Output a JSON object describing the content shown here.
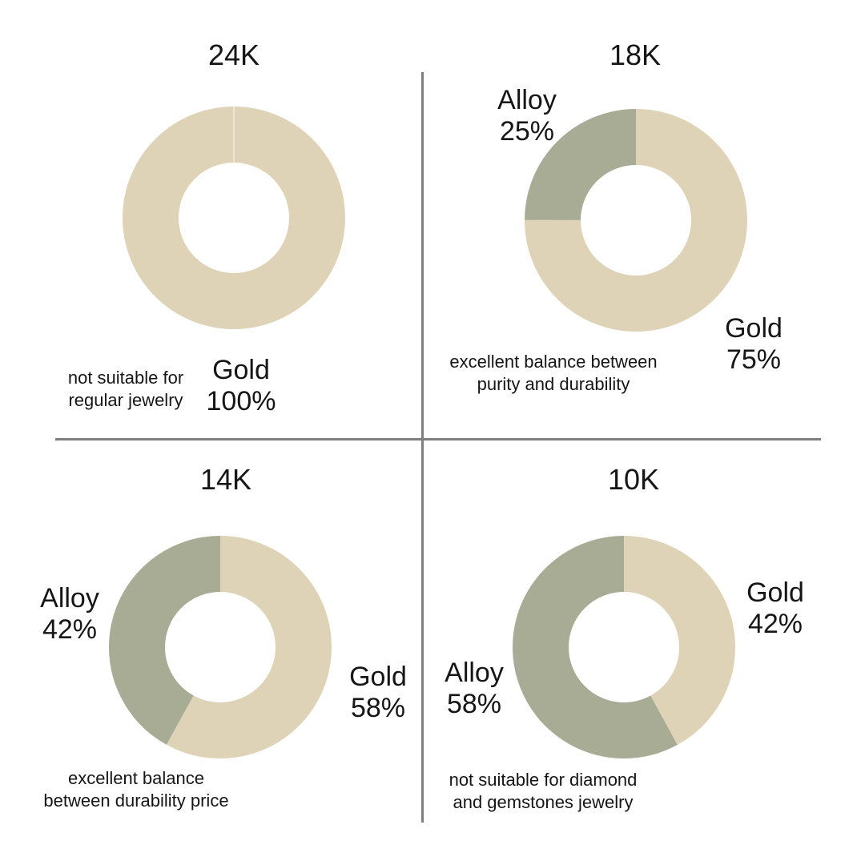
{
  "colors": {
    "gold_segment": "#DED3B7",
    "alloy_segment": "#A8AC94",
    "divider": "#7F7F7F",
    "text": "#161616",
    "background": "#FFFFFF"
  },
  "chart_data": [
    {
      "type": "pie",
      "subtype": "donut",
      "title": "24K",
      "slices": [
        {
          "label": "Gold",
          "value": 100,
          "display": "100%",
          "color": "#DED3B7"
        }
      ],
      "note_lines": [
        "not suitable for",
        "regular jewelry"
      ],
      "legend_position": "around-chart",
      "start_angle_deg": 0,
      "direction": "clockwise"
    },
    {
      "type": "pie",
      "subtype": "donut",
      "title": "18K",
      "slices": [
        {
          "label": "Gold",
          "value": 75,
          "display": "75%",
          "color": "#DED3B7"
        },
        {
          "label": "Alloy",
          "value": 25,
          "display": "25%",
          "color": "#A8AC94"
        }
      ],
      "note_lines": [
        "excellent balance between",
        "purity and durability"
      ],
      "legend_position": "around-chart",
      "start_angle_deg": 0,
      "direction": "clockwise"
    },
    {
      "type": "pie",
      "subtype": "donut",
      "title": "14K",
      "slices": [
        {
          "label": "Gold",
          "value": 58,
          "display": "58%",
          "color": "#DED3B7"
        },
        {
          "label": "Alloy",
          "value": 42,
          "display": "42%",
          "color": "#A8AC94"
        }
      ],
      "note_lines": [
        "excellent balance",
        "between durability price"
      ],
      "legend_position": "around-chart",
      "start_angle_deg": 0,
      "direction": "clockwise"
    },
    {
      "type": "pie",
      "subtype": "donut",
      "title": "10K",
      "slices": [
        {
          "label": "Gold",
          "value": 42,
          "display": "42%",
          "color": "#DED3B7"
        },
        {
          "label": "Alloy",
          "value": 58,
          "display": "58%",
          "color": "#A8AC94"
        }
      ],
      "note_lines": [
        "not suitable for diamond",
        "and gemstones jewelry"
      ],
      "legend_position": "around-chart",
      "start_angle_deg": 0,
      "direction": "clockwise"
    }
  ]
}
